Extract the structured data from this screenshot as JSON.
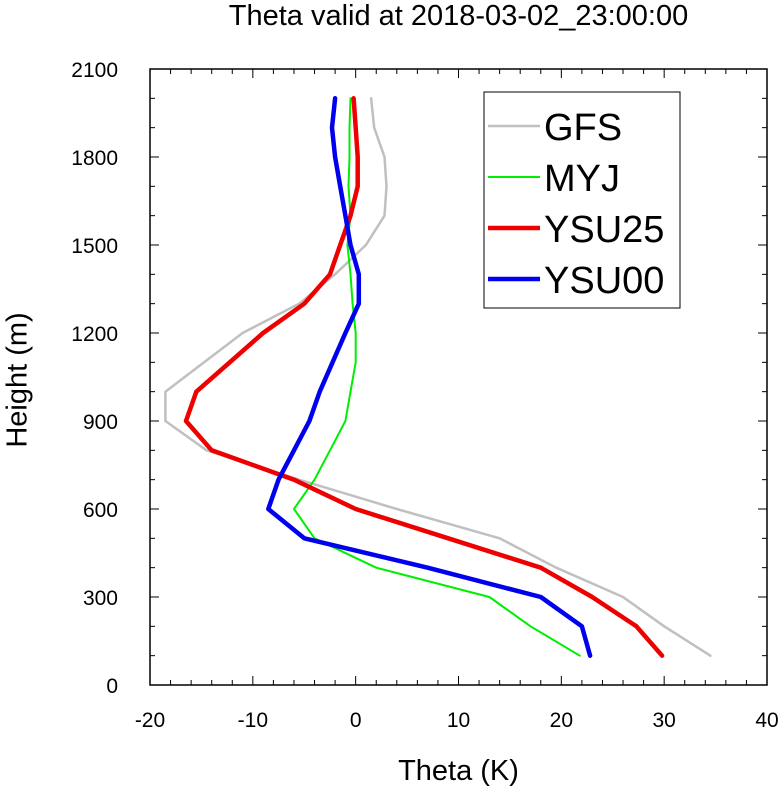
{
  "chart_data": {
    "type": "line",
    "title": "Theta valid at 2018-03-02_23:00:00",
    "xlabel": "Theta (K)",
    "ylabel": "Height (m)",
    "xlim": [
      -20,
      40
    ],
    "ylim": [
      0,
      2100
    ],
    "xticks": [
      -20,
      -10,
      0,
      10,
      20,
      30,
      40
    ],
    "yticks": [
      0,
      300,
      600,
      900,
      1200,
      1500,
      1800,
      2100
    ],
    "grid": false,
    "legend_position": "top-right",
    "series": [
      {
        "name": "GFS",
        "color": "#c0c0c0",
        "points": [
          [
            34.5,
            100
          ],
          [
            30,
            200
          ],
          [
            26,
            300
          ],
          [
            19.5,
            400
          ],
          [
            14,
            500
          ],
          [
            4,
            600
          ],
          [
            -5.5,
            700
          ],
          [
            -14.5,
            800
          ],
          [
            -18.5,
            900
          ],
          [
            -18.5,
            1000
          ],
          [
            -11,
            1200
          ],
          [
            -5.5,
            1300
          ],
          [
            -2,
            1400
          ],
          [
            1,
            1500
          ],
          [
            2.8,
            1600
          ],
          [
            3,
            1700
          ],
          [
            2.8,
            1800
          ],
          [
            1.8,
            1900
          ],
          [
            1.5,
            2000
          ]
        ]
      },
      {
        "name": "MYJ",
        "color": "#00ee00",
        "points": [
          [
            21.8,
            100
          ],
          [
            17,
            200
          ],
          [
            13,
            300
          ],
          [
            2,
            400
          ],
          [
            -4,
            500
          ],
          [
            -6,
            600
          ],
          [
            -4,
            700
          ],
          [
            -2.5,
            800
          ],
          [
            -1,
            900
          ],
          [
            -0.5,
            1000
          ],
          [
            0,
            1100
          ],
          [
            0,
            1200
          ],
          [
            -0.3,
            1300
          ],
          [
            -0.5,
            1400
          ],
          [
            -0.8,
            1500
          ],
          [
            -0.5,
            1600
          ],
          [
            -0.7,
            1700
          ],
          [
            -0.6,
            1800
          ],
          [
            -0.6,
            1900
          ],
          [
            -0.5,
            2000
          ]
        ]
      },
      {
        "name": "YSU25",
        "color": "#ee0000",
        "points": [
          [
            29.8,
            100
          ],
          [
            27.3,
            200
          ],
          [
            23,
            300
          ],
          [
            18,
            400
          ],
          [
            9,
            500
          ],
          [
            0,
            600
          ],
          [
            -6,
            700
          ],
          [
            -14,
            800
          ],
          [
            -16.5,
            900
          ],
          [
            -15.5,
            1000
          ],
          [
            -9,
            1200
          ],
          [
            -5,
            1300
          ],
          [
            -2.5,
            1400
          ],
          [
            -1.5,
            1500
          ],
          [
            -0.5,
            1600
          ],
          [
            0.2,
            1700
          ],
          [
            0.2,
            1800
          ],
          [
            0,
            1900
          ],
          [
            -0.2,
            2000
          ]
        ]
      },
      {
        "name": "YSU00",
        "color": "#0000ee",
        "points": [
          [
            22.8,
            100
          ],
          [
            22,
            200
          ],
          [
            18,
            300
          ],
          [
            7,
            400
          ],
          [
            -5,
            500
          ],
          [
            -8.5,
            600
          ],
          [
            -7.5,
            700
          ],
          [
            -6,
            800
          ],
          [
            -4.5,
            900
          ],
          [
            -3.5,
            1000
          ],
          [
            -1,
            1200
          ],
          [
            0.3,
            1300
          ],
          [
            0.3,
            1400
          ],
          [
            -0.5,
            1500
          ],
          [
            -1,
            1600
          ],
          [
            -1.5,
            1700
          ],
          [
            -2,
            1800
          ],
          [
            -2.3,
            1900
          ],
          [
            -2,
            2000
          ]
        ]
      }
    ]
  }
}
